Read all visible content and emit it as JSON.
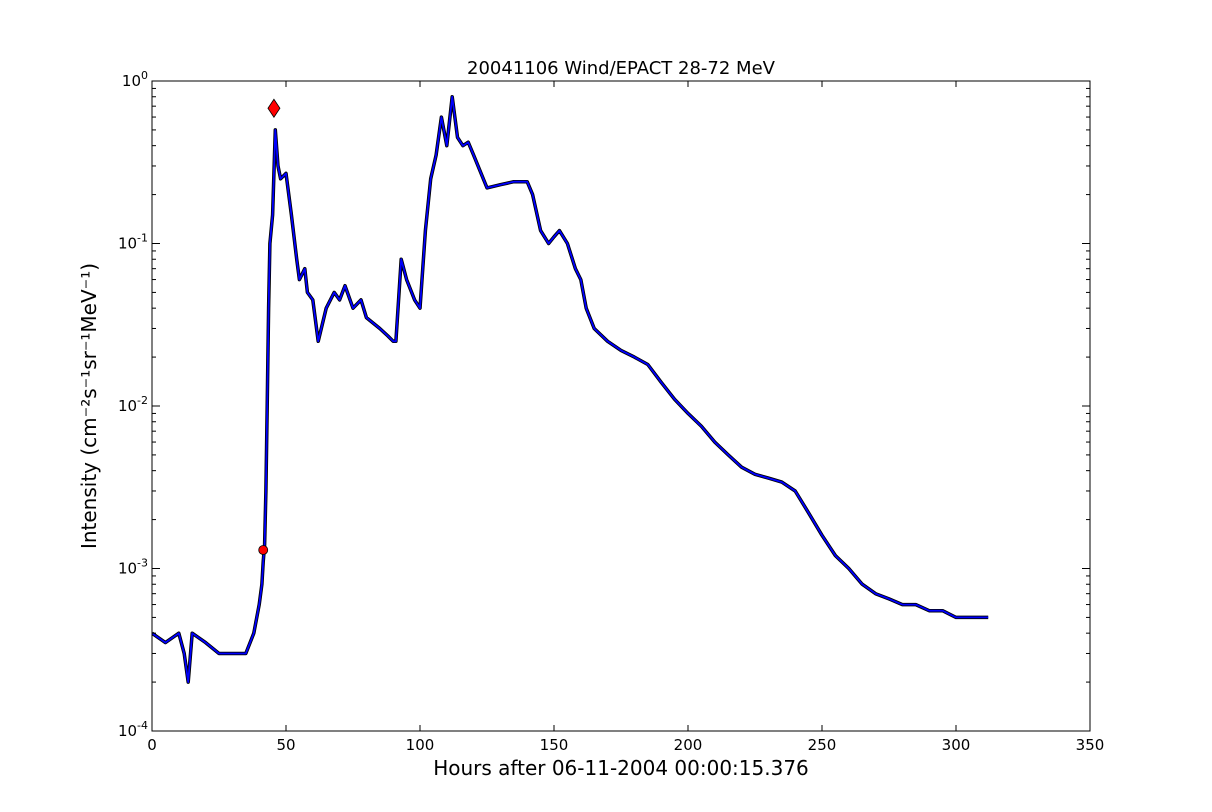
{
  "chart_data": {
    "type": "line",
    "title": "20041106 Wind/EPACT 28-72 MeV",
    "xlabel": "Hours after 06-11-2004 00:00:15.376",
    "ylabel": "Intensity (cm⁻²s⁻¹sr⁻¹MeV⁻¹)",
    "xlim": [
      0,
      350
    ],
    "ylim": [
      0.0001,
      1
    ],
    "yscale": "log",
    "grid": false,
    "x_ticks": [
      0,
      50,
      100,
      150,
      200,
      250,
      300,
      350
    ],
    "y_ticks": [
      {
        "value": 0.0001,
        "base": "10",
        "exp": "-4"
      },
      {
        "value": 0.001,
        "base": "10",
        "exp": "-3"
      },
      {
        "value": 0.01,
        "base": "10",
        "exp": "-2"
      },
      {
        "value": 0.1,
        "base": "10",
        "exp": "-1"
      },
      {
        "value": 1,
        "base": "10",
        "exp": "0"
      }
    ],
    "series": [
      {
        "color": "#000000",
        "style": "noisy raw data",
        "x": [
          0,
          5,
          10,
          12,
          13.5,
          15,
          20,
          25,
          30,
          35,
          38,
          40,
          41,
          41.5,
          42,
          42.5,
          43,
          43.5,
          44,
          45,
          46,
          47,
          48,
          50,
          52,
          54,
          55,
          57,
          58,
          60,
          62,
          65,
          68,
          70,
          72,
          75,
          78,
          80,
          85,
          88,
          90,
          91,
          93,
          95,
          98,
          100,
          102,
          104,
          106,
          108,
          110,
          112,
          114,
          116,
          118,
          120,
          125,
          130,
          135,
          140,
          142,
          145,
          148,
          150,
          152,
          155,
          158,
          160,
          162,
          165,
          170,
          175,
          180,
          185,
          190,
          195,
          200,
          205,
          210,
          215,
          220,
          225,
          230,
          235,
          240,
          245,
          250,
          255,
          260,
          265,
          270,
          275,
          280,
          285,
          290,
          295,
          300,
          305,
          310,
          312
        ],
        "y": [
          0.0004,
          0.00035,
          0.0004,
          0.0003,
          0.0002,
          0.0004,
          0.00035,
          0.0003,
          0.0003,
          0.0003,
          0.0004,
          0.0006,
          0.0008,
          0.0011,
          0.0014,
          0.003,
          0.01,
          0.04,
          0.1,
          0.15,
          0.5,
          0.3,
          0.25,
          0.27,
          0.15,
          0.08,
          0.06,
          0.07,
          0.05,
          0.045,
          0.025,
          0.04,
          0.05,
          0.045,
          0.055,
          0.04,
          0.045,
          0.035,
          0.03,
          0.027,
          0.025,
          0.025,
          0.08,
          0.06,
          0.045,
          0.04,
          0.12,
          0.25,
          0.35,
          0.6,
          0.4,
          0.8,
          0.45,
          0.4,
          0.42,
          0.35,
          0.22,
          0.23,
          0.24,
          0.24,
          0.2,
          0.12,
          0.1,
          0.11,
          0.12,
          0.1,
          0.07,
          0.06,
          0.04,
          0.03,
          0.025,
          0.022,
          0.02,
          0.018,
          0.014,
          0.011,
          0.009,
          0.0075,
          0.006,
          0.005,
          0.0042,
          0.0038,
          0.0036,
          0.0034,
          0.003,
          0.0022,
          0.0016,
          0.0012,
          0.001,
          0.0008,
          0.0007,
          0.00065,
          0.0006,
          0.0006,
          0.00055,
          0.00055,
          0.0005,
          0.0005,
          0.0005,
          0.0005
        ]
      },
      {
        "color": "#0000ff",
        "style": "smoothed",
        "x": [
          0,
          5,
          10,
          12,
          13.5,
          15,
          20,
          25,
          30,
          35,
          38,
          40,
          41,
          41.5,
          42,
          42.5,
          43,
          43.5,
          44,
          45,
          46,
          47,
          48,
          50,
          52,
          54,
          55,
          57,
          58,
          60,
          62,
          65,
          68,
          70,
          72,
          75,
          78,
          80,
          85,
          88,
          90,
          91,
          93,
          95,
          98,
          100,
          102,
          104,
          106,
          108,
          110,
          112,
          114,
          116,
          118,
          120,
          125,
          130,
          135,
          140,
          142,
          145,
          148,
          150,
          152,
          155,
          158,
          160,
          162,
          165,
          170,
          175,
          180,
          185,
          190,
          195,
          200,
          205,
          210,
          215,
          220,
          225,
          230,
          235,
          240,
          245,
          250,
          255,
          260,
          265,
          270,
          275,
          280,
          285,
          290,
          295,
          300,
          305,
          310,
          312
        ],
        "y": [
          0.0004,
          0.00035,
          0.0004,
          0.0003,
          0.0002,
          0.0004,
          0.00035,
          0.0003,
          0.0003,
          0.0003,
          0.0004,
          0.0006,
          0.0008,
          0.0011,
          0.0014,
          0.003,
          0.01,
          0.04,
          0.1,
          0.15,
          0.5,
          0.3,
          0.25,
          0.27,
          0.15,
          0.08,
          0.06,
          0.07,
          0.05,
          0.045,
          0.025,
          0.04,
          0.05,
          0.045,
          0.055,
          0.04,
          0.045,
          0.035,
          0.03,
          0.027,
          0.025,
          0.025,
          0.08,
          0.06,
          0.045,
          0.04,
          0.12,
          0.25,
          0.35,
          0.6,
          0.4,
          0.8,
          0.45,
          0.4,
          0.42,
          0.35,
          0.22,
          0.23,
          0.24,
          0.24,
          0.2,
          0.12,
          0.1,
          0.11,
          0.12,
          0.1,
          0.07,
          0.06,
          0.04,
          0.03,
          0.025,
          0.022,
          0.02,
          0.018,
          0.014,
          0.011,
          0.009,
          0.0075,
          0.006,
          0.005,
          0.0042,
          0.0038,
          0.0036,
          0.0034,
          0.003,
          0.0022,
          0.0016,
          0.0012,
          0.001,
          0.0008,
          0.0007,
          0.00065,
          0.0006,
          0.0006,
          0.00055,
          0.00055,
          0.0005,
          0.0005,
          0.0005,
          0.0005
        ]
      }
    ],
    "markers": [
      {
        "name": "onset",
        "shape": "circle",
        "color": "#ff0000",
        "x": 41.5,
        "y": 0.0013
      },
      {
        "name": "peak",
        "shape": "diamond",
        "color": "#ff0000",
        "x": 45.5,
        "y": 0.68
      }
    ]
  }
}
